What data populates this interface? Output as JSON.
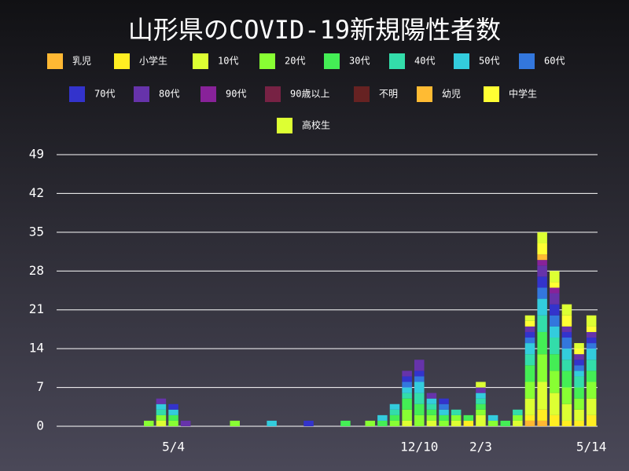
{
  "chart_data": {
    "type": "bar",
    "stacked": true,
    "title": "山形県のCOVID-19新規陽性者数",
    "categories": [
      null,
      null,
      null,
      null,
      null,
      null,
      null,
      null,
      null,
      "5/4",
      null,
      null,
      null,
      null,
      null,
      null,
      null,
      null,
      null,
      null,
      null,
      null,
      null,
      null,
      null,
      null,
      null,
      null,
      null,
      "12/10",
      null,
      null,
      null,
      null,
      "2/3",
      null,
      null,
      null,
      null,
      null,
      null,
      null,
      null,
      "5/14"
    ],
    "ylim": [
      0,
      49
    ],
    "yticks": [
      0,
      7,
      14,
      21,
      28,
      35,
      42,
      49
    ],
    "grid": true,
    "series": [
      {
        "name": "乳児",
        "color": "#ffb833",
        "values": [
          0,
          0,
          0,
          0,
          0,
          0,
          0,
          0,
          0,
          0,
          0,
          0,
          0,
          0,
          0,
          0,
          0,
          0,
          0,
          0,
          0,
          0,
          0,
          0,
          0,
          0,
          0,
          0,
          0,
          0,
          0,
          0,
          0,
          0,
          0,
          0,
          0,
          0,
          1,
          1,
          0,
          0,
          0,
          0
        ]
      },
      {
        "name": "小学生",
        "color": "#ffee22",
        "values": [
          0,
          0,
          0,
          0,
          0,
          0,
          0,
          0,
          0,
          0,
          0,
          0,
          0,
          0,
          0,
          0,
          0,
          0,
          0,
          0,
          0,
          0,
          0,
          0,
          0,
          0,
          0,
          0,
          0,
          0,
          0,
          0,
          0,
          1,
          0,
          0,
          0,
          0,
          1,
          2,
          2,
          1,
          1,
          2
        ]
      },
      {
        "name": "10代",
        "color": "#ddff33",
        "values": [
          0,
          0,
          0,
          0,
          0,
          0,
          0,
          0,
          1,
          0,
          0,
          0,
          0,
          0,
          0,
          0,
          0,
          0,
          0,
          0,
          0,
          0,
          0,
          0,
          0,
          0,
          0,
          0,
          1,
          0,
          1,
          0,
          1,
          0,
          2,
          0,
          0,
          1,
          3,
          5,
          4,
          3,
          2,
          3
        ]
      },
      {
        "name": "20代",
        "color": "#88ff33",
        "values": [
          0,
          0,
          0,
          0,
          0,
          0,
          0,
          1,
          1,
          1,
          0,
          0,
          0,
          0,
          1,
          0,
          0,
          0,
          0,
          0,
          0,
          0,
          0,
          0,
          0,
          1,
          0,
          1,
          2,
          2,
          1,
          1,
          1,
          0,
          1,
          1,
          0,
          1,
          3,
          5,
          4,
          3,
          2,
          3
        ]
      },
      {
        "name": "30代",
        "color": "#44ee55",
        "values": [
          0,
          0,
          0,
          0,
          0,
          0,
          0,
          0,
          0,
          1,
          0,
          0,
          0,
          0,
          0,
          0,
          0,
          0,
          0,
          0,
          0,
          0,
          0,
          1,
          0,
          0,
          1,
          1,
          2,
          2,
          1,
          1,
          0,
          1,
          1,
          0,
          1,
          0,
          3,
          4,
          3,
          3,
          2,
          2
        ]
      },
      {
        "name": "40代",
        "color": "#33ddaa",
        "values": [
          0,
          0,
          0,
          0,
          0,
          0,
          0,
          0,
          1,
          0,
          0,
          0,
          0,
          0,
          0,
          0,
          0,
          0,
          0,
          0,
          0,
          0,
          0,
          0,
          0,
          0,
          0,
          1,
          1,
          2,
          1,
          0,
          1,
          0,
          1,
          0,
          0,
          1,
          2,
          3,
          3,
          2,
          2,
          2
        ]
      },
      {
        "name": "50代",
        "color": "#33ccdd",
        "values": [
          0,
          0,
          0,
          0,
          0,
          0,
          0,
          0,
          1,
          1,
          0,
          0,
          0,
          0,
          0,
          0,
          0,
          1,
          0,
          0,
          0,
          0,
          0,
          0,
          0,
          0,
          1,
          1,
          1,
          2,
          1,
          1,
          0,
          0,
          1,
          1,
          0,
          0,
          2,
          3,
          2,
          2,
          1,
          2
        ]
      },
      {
        "name": "60代",
        "color": "#3377dd",
        "values": [
          0,
          0,
          0,
          0,
          0,
          0,
          0,
          0,
          0,
          0,
          0,
          0,
          0,
          0,
          0,
          0,
          0,
          0,
          0,
          0,
          0,
          0,
          0,
          0,
          0,
          0,
          0,
          0,
          1,
          1,
          0,
          1,
          0,
          0,
          0,
          0,
          0,
          0,
          1,
          2,
          2,
          2,
          1,
          1
        ]
      },
      {
        "name": "70代",
        "color": "#3333cc",
        "values": [
          0,
          0,
          0,
          0,
          0,
          0,
          0,
          0,
          0,
          1,
          0,
          0,
          0,
          0,
          0,
          0,
          0,
          0,
          0,
          0,
          1,
          0,
          0,
          0,
          0,
          0,
          0,
          0,
          1,
          1,
          0,
          1,
          0,
          0,
          0,
          0,
          0,
          0,
          1,
          2,
          2,
          1,
          1,
          1
        ]
      },
      {
        "name": "80代",
        "color": "#6633aa",
        "values": [
          0,
          0,
          0,
          0,
          0,
          0,
          0,
          0,
          1,
          0,
          1,
          0,
          0,
          0,
          0,
          0,
          0,
          0,
          0,
          0,
          0,
          0,
          0,
          0,
          0,
          0,
          0,
          0,
          1,
          2,
          1,
          0,
          0,
          0,
          1,
          0,
          0,
          0,
          1,
          2,
          2,
          1,
          1,
          1
        ]
      },
      {
        "name": "90代",
        "color": "#882299",
        "values": [
          0,
          0,
          0,
          0,
          0,
          0,
          0,
          0,
          0,
          0,
          0,
          0,
          0,
          0,
          0,
          0,
          0,
          0,
          0,
          0,
          0,
          0,
          0,
          0,
          0,
          0,
          0,
          0,
          0,
          0,
          0,
          0,
          0,
          0,
          0,
          0,
          0,
          0,
          0,
          1,
          1,
          0,
          0,
          0
        ]
      },
      {
        "name": "90歳以上",
        "color": "#772244",
        "values": [
          0,
          0,
          0,
          0,
          0,
          0,
          0,
          0,
          0,
          0,
          0,
          0,
          0,
          0,
          0,
          0,
          0,
          0,
          0,
          0,
          0,
          0,
          0,
          0,
          0,
          0,
          0,
          0,
          0,
          0,
          0,
          0,
          0,
          0,
          0,
          0,
          0,
          0,
          0,
          0,
          0,
          0,
          0,
          0
        ]
      },
      {
        "name": "不明",
        "color": "#662222",
        "values": [
          0,
          0,
          0,
          0,
          0,
          0,
          0,
          0,
          0,
          0,
          0,
          0,
          0,
          0,
          0,
          0,
          0,
          0,
          0,
          0,
          0,
          0,
          0,
          0,
          0,
          0,
          0,
          0,
          0,
          0,
          0,
          0,
          0,
          0,
          0,
          0,
          0,
          0,
          0,
          0,
          0,
          0,
          0,
          0
        ]
      },
      {
        "name": "幼児",
        "color": "#ffbb33",
        "values": [
          0,
          0,
          0,
          0,
          0,
          0,
          0,
          0,
          0,
          0,
          0,
          0,
          0,
          0,
          0,
          0,
          0,
          0,
          0,
          0,
          0,
          0,
          0,
          0,
          0,
          0,
          0,
          0,
          0,
          0,
          0,
          0,
          0,
          0,
          0,
          0,
          0,
          0,
          0,
          1,
          0,
          0,
          0,
          0
        ]
      },
      {
        "name": "中学生",
        "color": "#ffff33",
        "values": [
          0,
          0,
          0,
          0,
          0,
          0,
          0,
          0,
          0,
          0,
          0,
          0,
          0,
          0,
          0,
          0,
          0,
          0,
          0,
          0,
          0,
          0,
          0,
          0,
          0,
          0,
          0,
          0,
          0,
          0,
          0,
          0,
          0,
          0,
          0,
          0,
          0,
          0,
          1,
          2,
          1,
          2,
          1,
          1
        ]
      },
      {
        "name": "高校生",
        "color": "#ddff33",
        "values": [
          0,
          0,
          0,
          0,
          0,
          0,
          0,
          0,
          0,
          0,
          0,
          0,
          0,
          0,
          0,
          0,
          0,
          0,
          0,
          0,
          0,
          0,
          0,
          0,
          0,
          0,
          0,
          0,
          0,
          0,
          0,
          0,
          0,
          0,
          1,
          0,
          0,
          0,
          1,
          2,
          2,
          2,
          1,
          2
        ]
      }
    ]
  }
}
